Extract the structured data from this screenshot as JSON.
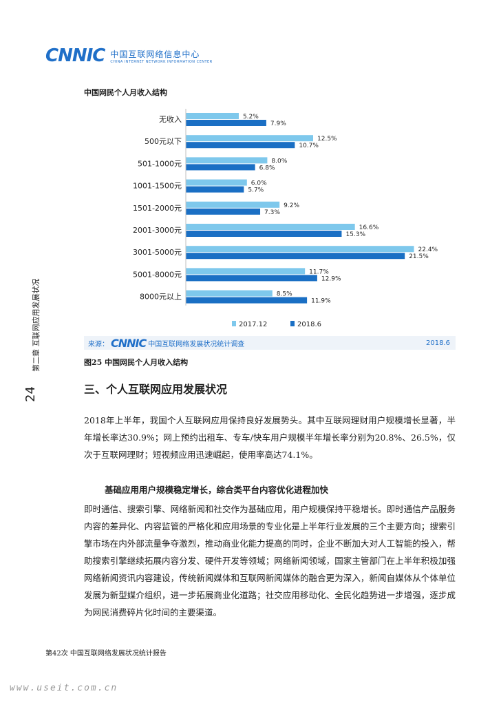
{
  "header": {
    "logo_mark": "CNNIC",
    "logo_cn": "中国互联网络信息中心",
    "logo_en": "CHINA INTERNET NETWORK INFORMATION CENTER"
  },
  "figure": {
    "title": "中国网民个人月收入结构",
    "caption": "图25  中国网民个人月收入结构",
    "source_label": "来源：",
    "source_mark": "CNNIC",
    "source_name": "中国互联网络发展状况统计调查",
    "source_date": "2018.6"
  },
  "chart_data": {
    "type": "bar",
    "orientation": "horizontal",
    "categories": [
      "无收入",
      "500元以下",
      "501-1000元",
      "1001-1500元",
      "1501-2000元",
      "2001-3000元",
      "3001-5000元",
      "5001-8000元",
      "8000元以上"
    ],
    "series": [
      {
        "name": "2017.12",
        "color": "#7ec8ec",
        "values": [
          5.2,
          12.5,
          8.0,
          6.0,
          9.2,
          16.6,
          22.4,
          11.7,
          8.5
        ],
        "labels": [
          "5.2%",
          "12.5%",
          "8.0%",
          "6.0%",
          "9.2%",
          "16.6%",
          "22.4%",
          "11.7%",
          "8.5%"
        ]
      },
      {
        "name": "2018.6",
        "color": "#1a6fc4",
        "values": [
          7.9,
          10.7,
          6.8,
          5.7,
          7.3,
          15.3,
          21.5,
          12.9,
          11.9
        ],
        "labels": [
          "7.9%",
          "10.7%",
          "6.8%",
          "5.7%",
          "7.3%",
          "15.3%",
          "21.5%",
          "12.9%",
          "11.9%"
        ]
      }
    ],
    "xlim": [
      0,
      25
    ],
    "legend_position": "bottom-center",
    "grid": false
  },
  "section": {
    "heading": "三、个人互联网应用发展状况",
    "para1": "2018年上半年，我国个人互联网应用保持良好发展势头。其中互联网理财用户规模增长显著，半年增长率达30.9%；网上预约出租车、专车/快车用户规模半年增长率分别为20.8%、26.5%，仅次于互联网理财；短视频应用迅速崛起，使用率高达74.1%。",
    "subheading": "基础应用用户规模稳定增长，综合类平台内容优化进程加快",
    "para2": "即时通信、搜索引擎、网络新闻和社交作为基础应用，用户规模保持平稳增长。即时通信产品服务内容的差异化、内容监管的严格化和应用场景的专业化是上半年行业发展的三个主要方向；搜索引擎市场在内外部流量争夺激烈，推动商业化能力提高的同时，企业不断加大对人工智能的投入，帮助搜索引擎继续拓展内容分发、硬件开发等领域；网络新闻领域，国家主管部门在上半年积极加强网络新闻资讯内容建设，传统新闻媒体和互联网新闻媒体的融合更为深入，新闻自媒体从个体单位发展为新型媒介组织，进一步拓展商业化道路；社交应用移动化、全民化趋势进一步增强，逐步成为网民消费碎片化时间的主要渠道。"
  },
  "side": {
    "page_number": "24",
    "chapter": "第二章  互联网应用发展状况"
  },
  "footer": {
    "text": "第42次  中国互联网络发展状况统计报告"
  },
  "watermark": "www.useit.com.cn"
}
